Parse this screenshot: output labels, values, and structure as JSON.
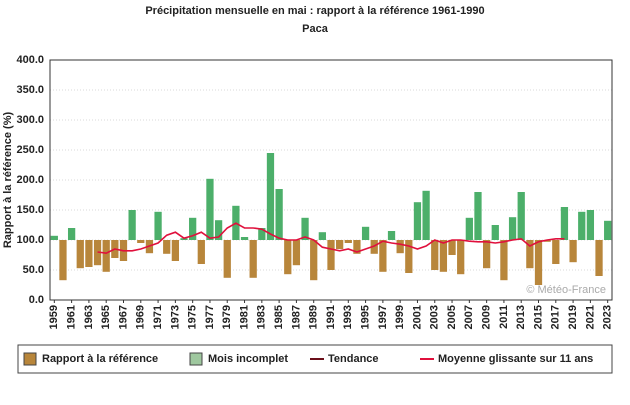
{
  "chart_data": {
    "type": "bar",
    "title": "Précipitation mensuelle en mai : rapport à la référence 1961-1990",
    "subtitle": "Paca",
    "y_label": "Rapport à la référence (%)",
    "copyright": "© Météo-France",
    "baseline": 100,
    "above_color": "#4caf6a",
    "below_color": "#b8863b",
    "x": [
      1959,
      1960,
      1961,
      1962,
      1963,
      1964,
      1965,
      1966,
      1967,
      1968,
      1969,
      1970,
      1971,
      1972,
      1973,
      1974,
      1975,
      1976,
      1977,
      1978,
      1979,
      1980,
      1981,
      1982,
      1983,
      1984,
      1985,
      1986,
      1987,
      1988,
      1989,
      1990,
      1991,
      1992,
      1993,
      1994,
      1995,
      1996,
      1997,
      1998,
      1999,
      2000,
      2001,
      2002,
      2003,
      2004,
      2005,
      2006,
      2007,
      2008,
      2009,
      2010,
      2011,
      2012,
      2013,
      2014,
      2015,
      2016,
      2017,
      2018,
      2019,
      2020,
      2021,
      2022,
      2023
    ],
    "series": [
      {
        "name": "Rapport à la référence",
        "color": "#b8863b",
        "values": [
          107,
          33,
          120,
          53,
          55,
          58,
          47,
          70,
          65,
          150,
          95,
          78,
          147,
          77,
          65,
          103,
          137,
          60,
          202,
          133,
          37,
          157,
          105,
          37,
          120,
          245,
          185,
          43,
          58,
          137,
          33,
          113,
          50,
          85,
          95,
          77,
          122,
          77,
          47,
          115,
          78,
          45,
          163,
          182,
          50,
          47,
          75,
          43,
          137,
          180,
          53,
          125,
          33,
          138,
          180,
          53,
          25,
          97,
          60,
          155,
          63,
          147,
          150,
          40,
          132
        ]
      },
      {
        "name": "Moyenne glissante sur 11 ans",
        "color": "#e0103c",
        "values": [
          null,
          null,
          null,
          null,
          null,
          80,
          78,
          85,
          82,
          82,
          85,
          90,
          95,
          108,
          113,
          103,
          107,
          113,
          103,
          105,
          120,
          128,
          120,
          120,
          118,
          110,
          103,
          100,
          100,
          105,
          100,
          88,
          85,
          82,
          85,
          80,
          85,
          90,
          98,
          95,
          93,
          90,
          85,
          90,
          100,
          95,
          100,
          100,
          98,
          97,
          97,
          95,
          97,
          100,
          102,
          90,
          97,
          100,
          102,
          102,
          null,
          null,
          null,
          null,
          null
        ]
      }
    ],
    "legend": [
      {
        "name": "Rapport à la référence",
        "color": "#b8863b"
      },
      {
        "name": "Mois incomplet",
        "color": "#9fc89f"
      },
      {
        "name": "Tendance",
        "color": "#6b0f1a"
      },
      {
        "name": "Moyenne glissante sur 11 ans",
        "color": "#e0103c"
      }
    ],
    "xlim": [
      1958.5,
      2023.5
    ],
    "xticks": [
      1959,
      1961,
      1963,
      1965,
      1967,
      1969,
      1971,
      1973,
      1975,
      1977,
      1979,
      1981,
      1983,
      1985,
      1987,
      1989,
      1991,
      1993,
      1995,
      1997,
      1999,
      2001,
      2003,
      2005,
      2007,
      2009,
      2011,
      2013,
      2015,
      2017,
      2019,
      2021,
      2023
    ],
    "ylim": [
      0,
      400
    ],
    "yticks": [
      {
        "value": 0,
        "label": "0.0"
      },
      {
        "value": 50,
        "label": "50.0"
      },
      {
        "value": 100,
        "label": "100.0"
      },
      {
        "value": 150,
        "label": "150.0"
      },
      {
        "value": 200,
        "label": "200.0"
      },
      {
        "value": 250,
        "label": "250.0"
      },
      {
        "value": 300,
        "label": "300.0"
      },
      {
        "value": 350,
        "label": "350.0"
      },
      {
        "value": 400,
        "label": "400.0"
      }
    ],
    "grid": true
  }
}
